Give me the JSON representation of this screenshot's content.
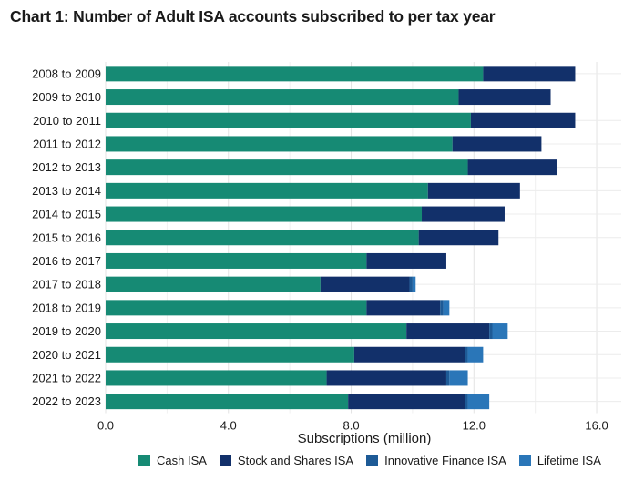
{
  "title": "Chart 1: Number of Adult ISA accounts subscribed to per tax year",
  "chart_data": {
    "type": "bar",
    "orientation": "horizontal",
    "stacked": true,
    "categories": [
      "2008 to 2009",
      "2009 to 2010",
      "2010 to 2011",
      "2011 to 2012",
      "2012 to 2013",
      "2013 to 2014",
      "2014 to 2015",
      "2015 to 2016",
      "2016 to 2017",
      "2017 to 2018",
      "2018 to 2019",
      "2019 to 2020",
      "2020 to 2021",
      "2021 to 2022",
      "2022 to 2023"
    ],
    "series": [
      {
        "name": "Cash ISA",
        "color": "#168a74",
        "values": [
          12.3,
          11.5,
          11.9,
          11.3,
          11.8,
          10.5,
          10.3,
          10.2,
          8.5,
          7.0,
          8.5,
          9.8,
          8.1,
          7.2,
          7.9
        ]
      },
      {
        "name": "Stock and Shares ISA",
        "color": "#12306a",
        "values": [
          3.0,
          3.0,
          3.4,
          2.9,
          2.9,
          3.0,
          2.7,
          2.6,
          2.6,
          2.9,
          2.4,
          2.7,
          3.6,
          3.9,
          3.8
        ]
      },
      {
        "name": "Innovative Finance ISA",
        "color": "#1d5a96",
        "values": [
          0,
          0,
          0,
          0,
          0,
          0,
          0,
          0,
          0,
          0.1,
          0.1,
          0.1,
          0.1,
          0.1,
          0.1
        ]
      },
      {
        "name": "Lifetime ISA",
        "color": "#2a76b8",
        "values": [
          0,
          0,
          0,
          0,
          0,
          0,
          0,
          0,
          0,
          0.1,
          0.2,
          0.5,
          0.5,
          0.6,
          0.7
        ]
      }
    ],
    "xlabel": "Subscriptions (million)",
    "ylabel": "",
    "xlim": [
      0,
      16.8
    ],
    "xticks": [
      0,
      4,
      8,
      12,
      16
    ],
    "xtick_labels": [
      "0.0",
      "4.0",
      "8.0",
      "12.0",
      "16.0"
    ],
    "grid": true,
    "legend_position": "bottom"
  }
}
